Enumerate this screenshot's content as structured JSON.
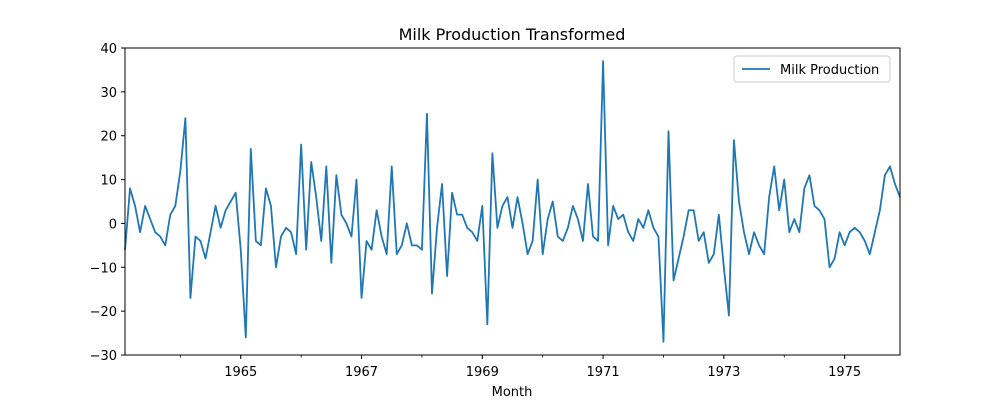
{
  "chart_data": {
    "type": "line",
    "title": "Milk Production Transformed",
    "xlabel": "Month",
    "ylabel": "",
    "ylim": [
      -30,
      40
    ],
    "yticks": [
      -30,
      -20,
      -10,
      0,
      10,
      20,
      30,
      40
    ],
    "xlim": [
      "1963-02",
      "1975-12"
    ],
    "xticks": [
      "1965",
      "1967",
      "1969",
      "1971",
      "1973",
      "1975"
    ],
    "grid": false,
    "legend": {
      "position": "top-right"
    },
    "series": [
      {
        "name": "Milk Production",
        "color": "#1f77b4",
        "x": [
          "1963-02",
          "1963-03",
          "1963-04",
          "1963-05",
          "1963-06",
          "1963-07",
          "1963-08",
          "1963-09",
          "1963-10",
          "1963-11",
          "1963-12",
          "1964-01",
          "1964-02",
          "1964-03",
          "1964-04",
          "1964-05",
          "1964-06",
          "1964-07",
          "1964-08",
          "1964-09",
          "1964-10",
          "1964-11",
          "1964-12",
          "1965-01",
          "1965-02",
          "1965-03",
          "1965-04",
          "1965-05",
          "1965-06",
          "1965-07",
          "1965-08",
          "1965-09",
          "1965-10",
          "1965-11",
          "1965-12",
          "1966-01",
          "1966-02",
          "1966-03",
          "1966-04",
          "1966-05",
          "1966-06",
          "1966-07",
          "1966-08",
          "1966-09",
          "1966-10",
          "1966-11",
          "1966-12",
          "1967-01",
          "1967-02",
          "1967-03",
          "1967-04",
          "1967-05",
          "1967-06",
          "1967-07",
          "1967-08",
          "1967-09",
          "1967-10",
          "1967-11",
          "1967-12",
          "1968-01",
          "1968-02",
          "1968-03",
          "1968-04",
          "1968-05",
          "1968-06",
          "1968-07",
          "1968-08",
          "1968-09",
          "1968-10",
          "1968-11",
          "1968-12",
          "1969-01",
          "1969-02",
          "1969-03",
          "1969-04",
          "1969-05",
          "1969-06",
          "1969-07",
          "1969-08",
          "1969-09",
          "1969-10",
          "1969-11",
          "1969-12",
          "1970-01",
          "1970-02",
          "1970-03",
          "1970-04",
          "1970-05",
          "1970-06",
          "1970-07",
          "1970-08",
          "1970-09",
          "1970-10",
          "1970-11",
          "1970-12",
          "1971-01",
          "1971-02",
          "1971-03",
          "1971-04",
          "1971-05",
          "1971-06",
          "1971-07",
          "1971-08",
          "1971-09",
          "1971-10",
          "1971-11",
          "1971-12",
          "1972-01",
          "1972-02",
          "1972-03",
          "1972-04",
          "1972-05",
          "1972-06",
          "1972-07",
          "1972-08",
          "1972-09",
          "1972-10",
          "1972-11",
          "1972-12",
          "1973-01",
          "1973-02",
          "1973-03",
          "1973-04",
          "1973-05",
          "1973-06",
          "1973-07",
          "1973-08",
          "1973-09",
          "1973-10",
          "1973-11",
          "1973-12",
          "1974-01",
          "1974-02",
          "1974-03",
          "1974-04",
          "1974-05",
          "1974-06",
          "1974-07",
          "1974-08",
          "1974-09",
          "1974-10",
          "1974-11",
          "1974-12",
          "1975-01",
          "1975-02",
          "1975-03",
          "1975-04",
          "1975-05",
          "1975-06",
          "1975-07",
          "1975-08",
          "1975-09",
          "1975-10",
          "1975-11",
          "1975-12"
        ],
        "values": [
          -6,
          8,
          4,
          -2,
          4,
          1,
          -2,
          -3,
          -5,
          2,
          4,
          12,
          24,
          -17,
          -3,
          -4,
          -8,
          -2,
          4,
          -1,
          3,
          5,
          7,
          -6,
          -26,
          17,
          -4,
          -5,
          8,
          4,
          -10,
          -3,
          -1,
          -2,
          -7,
          18,
          -6,
          14,
          6,
          -4,
          13,
          -9,
          11,
          2,
          0,
          -3,
          10,
          -17,
          -4,
          -6,
          3,
          -3,
          -7,
          13,
          -7,
          -5,
          0,
          -5,
          -5,
          -6,
          25,
          -16,
          -1,
          9,
          -12,
          7,
          2,
          2,
          -1,
          -2,
          -4,
          4,
          -23,
          16,
          -1,
          4,
          6,
          -1,
          6,
          0,
          -7,
          -4,
          10,
          -7,
          1,
          5,
          -3,
          -4,
          -1,
          4,
          1,
          -4,
          9,
          -3,
          -4,
          37,
          -5,
          4,
          1,
          2,
          -2,
          -4,
          1,
          -1,
          3,
          -1,
          -3,
          -27,
          21,
          -13,
          -8,
          -3,
          3,
          3,
          -4,
          -2,
          -9,
          -7,
          2,
          -10,
          -21,
          19,
          5,
          -2,
          -7,
          -2,
          -5,
          -7,
          6,
          13,
          3,
          10,
          -2,
          1,
          -2,
          8,
          11,
          4,
          3,
          1,
          -10,
          -8,
          -2,
          -5,
          -2,
          -1,
          -2,
          -4,
          -7,
          -2,
          3,
          11,
          13,
          9,
          6
        ]
      }
    ]
  }
}
